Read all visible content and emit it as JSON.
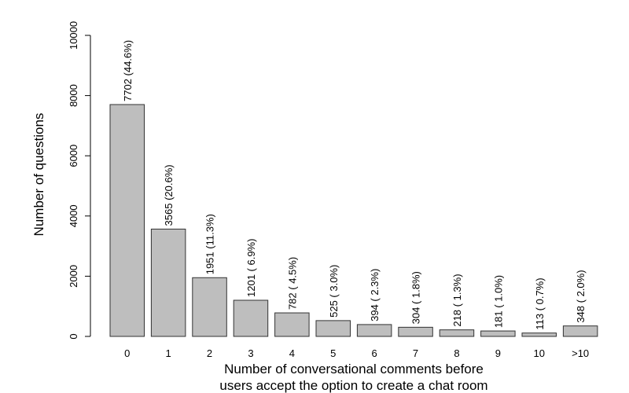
{
  "chart_data": {
    "type": "bar",
    "categories": [
      "0",
      "1",
      "2",
      "3",
      "4",
      "5",
      "6",
      "7",
      "8",
      "9",
      "10",
      ">10"
    ],
    "values": [
      7702,
      3565,
      1951,
      1201,
      782,
      525,
      394,
      304,
      218,
      181,
      113,
      348
    ],
    "data_labels": [
      "7702 (44.6%)",
      "3565 (20.6%)",
      "1951 (11.3%)",
      "1201 ( 6.9%)",
      "782 ( 4.5%)",
      "525 ( 3.0%)",
      "394 ( 2.3%)",
      "304 ( 1.8%)",
      "218 ( 1.3%)",
      "181 ( 1.0%)",
      "113 ( 0.7%)",
      "348 ( 2.0%)"
    ],
    "title": "",
    "xlabel": "Number of conversational comments before users accept the option to create a chat room",
    "xlabel_lines": [
      "Number of conversational comments before",
      "users accept the option to create a chat room"
    ],
    "ylabel": "Number of questions",
    "ylim": [
      0,
      10000
    ],
    "yticks": [
      0,
      2000,
      4000,
      6000,
      8000,
      10000
    ],
    "grid": false,
    "bar_color": "#bebebe",
    "bar_edge_color": "#333333"
  }
}
